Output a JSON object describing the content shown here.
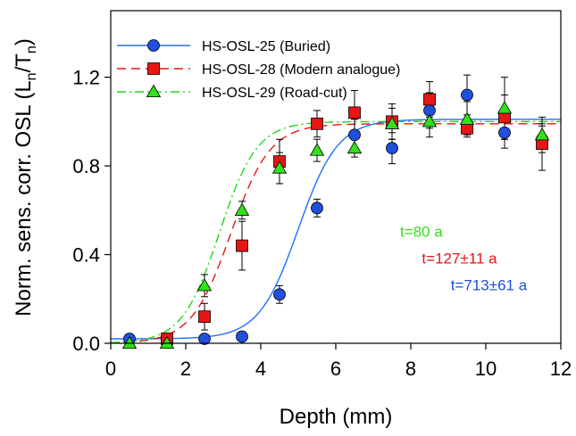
{
  "chart_data": {
    "type": "scatter",
    "xlabel": "Depth (mm)",
    "ylabel": {
      "prefix": "Norm. sens. corr. OSL (L",
      "sub1": "n",
      "mid": "/T",
      "sub2": "n",
      "suffix": ")"
    },
    "xlim": [
      0,
      12
    ],
    "ylim": [
      0,
      1.5
    ],
    "xticks": [
      0,
      2,
      4,
      6,
      8,
      10,
      12
    ],
    "yticks": [
      0.0,
      0.4,
      0.8,
      1.2
    ],
    "ytick_labels": [
      "0.0",
      "0.4",
      "0.8",
      "1.2"
    ],
    "grid": false,
    "legend_position": "top-left",
    "series": [
      {
        "name": "HS-OSL-25 (Buried)",
        "marker": "circle",
        "color": "#1f4fdc",
        "line_style": "solid",
        "line_color": "#1f6fff",
        "x": [
          0.5,
          1.5,
          2.5,
          3.5,
          4.5,
          5.5,
          6.5,
          7.5,
          8.5,
          9.5,
          10.5,
          11.5
        ],
        "y": [
          0.02,
          0.02,
          0.02,
          0.03,
          0.22,
          0.61,
          0.94,
          0.88,
          1.05,
          1.12,
          0.95,
          0.92
        ],
        "err": [
          0,
          0,
          0,
          0,
          0.04,
          0.04,
          0.07,
          0.07,
          0.08,
          0.09,
          0.07,
          0.06
        ],
        "fit": {
          "midpoint": 5.0,
          "slope": 1.9,
          "plateau": 1.01,
          "baseline": 0.02
        }
      },
      {
        "name": "HS-OSL-28 (Modern analogue)",
        "marker": "square",
        "color": "#e81515",
        "line_style": "dashed",
        "line_color": "#e81515",
        "x": [
          1.5,
          2.5,
          3.5,
          4.5,
          5.5,
          6.5,
          7.5,
          8.5,
          9.5,
          10.5,
          11.5
        ],
        "y": [
          0.02,
          0.12,
          0.44,
          0.82,
          0.99,
          1.04,
          1.0,
          1.1,
          0.97,
          1.02,
          0.9
        ],
        "err": [
          0,
          0.06,
          0.11,
          0.1,
          0.06,
          0.1,
          0.08,
          0.08,
          0.03,
          0.1,
          0.12
        ],
        "fit": {
          "midpoint": 3.2,
          "slope": 1.9,
          "plateau": 0.99,
          "baseline": 0.0
        }
      },
      {
        "name": "HS-OSL-29 (Road-cut)",
        "marker": "triangle",
        "color": "#33e01a",
        "line_style": "dashdot",
        "line_color": "#22d61a",
        "x": [
          0.5,
          1.5,
          2.5,
          3.5,
          4.5,
          5.5,
          6.5,
          7.5,
          8.5,
          9.5,
          10.5,
          11.5
        ],
        "y": [
          0.0,
          0.0,
          0.26,
          0.6,
          0.79,
          0.87,
          0.88,
          0.99,
          1.0,
          1.01,
          1.06,
          0.94
        ],
        "err": [
          0,
          0,
          0.05,
          0.04,
          0.07,
          0.05,
          0.04,
          0.07,
          0.07,
          0.08,
          0.14,
          0.05
        ],
        "fit": {
          "midpoint": 2.9,
          "slope": 2.0,
          "plateau": 1.0,
          "baseline": 0.0
        }
      }
    ],
    "annotations": [
      {
        "text": "t=80 a",
        "x": 8.85,
        "y": 0.48,
        "color": "#33e01a"
      },
      {
        "text": "t=127±11 a",
        "x": 10.3,
        "y": 0.36,
        "color": "#e81515"
      },
      {
        "text": "t=713±61 a",
        "x": 11.1,
        "y": 0.24,
        "color": "#1f4fdc"
      }
    ]
  }
}
